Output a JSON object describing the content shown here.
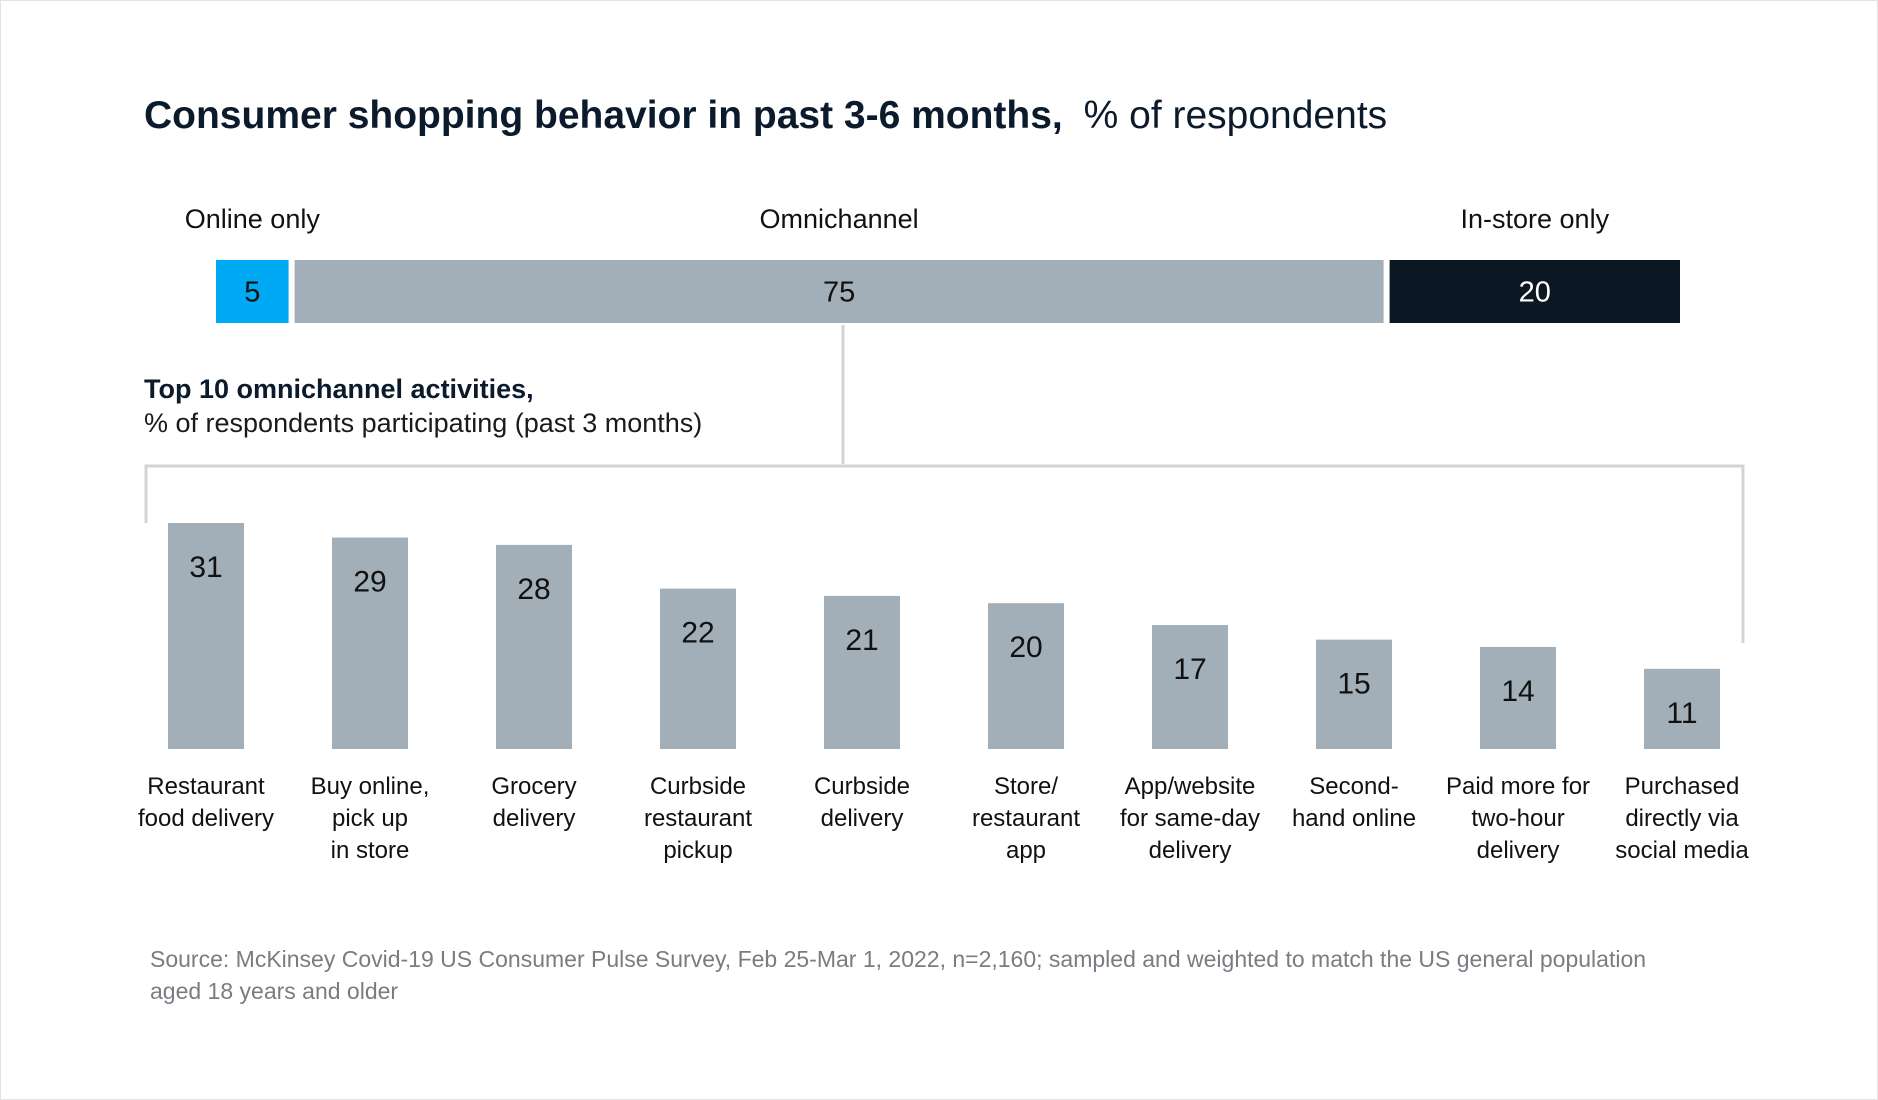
{
  "title": {
    "bold": "Consumer shopping behavior in past 3-6 months,",
    "regular": "% of respondents"
  },
  "colors": {
    "online": "#00a9f4",
    "omnichannel": "#a2afb9",
    "instore": "#0b1823",
    "bar": "#a2afb9",
    "bracket": "#d0d4d7",
    "text": "#111111",
    "source": "#777d82"
  },
  "subtitle": {
    "bold": "Top 10 omnichannel activities,",
    "regular": "% of respondents participating (past 3 months)"
  },
  "source": {
    "line1": "Source: McKinsey Covid-19 US Consumer Pulse Survey, Feb 25-Mar 1, 2022, n=2,160; sampled and weighted to match the US general population",
    "line2": "aged 18 years and older"
  },
  "chart_data": [
    {
      "type": "bar",
      "orientation": "horizontal-stacked",
      "title": "Consumer shopping behavior in past 3-6 months, % of respondents",
      "categories": [
        "Online only",
        "Omnichannel",
        "In-store only"
      ],
      "values": [
        5,
        75,
        20
      ],
      "labels": [
        "5",
        "75",
        "20"
      ]
    },
    {
      "type": "bar",
      "title": "Top 10 omnichannel activities, % of respondents participating (past 3 months)",
      "categories": [
        [
          "Restaurant",
          "food delivery"
        ],
        [
          "Buy online,",
          "pick up",
          "in store"
        ],
        [
          "Grocery",
          "delivery"
        ],
        [
          "Curbside",
          "restaurant",
          "pickup"
        ],
        [
          "Curbside",
          "delivery"
        ],
        [
          "Store/",
          "restaurant",
          "app"
        ],
        [
          "App/website",
          "for same-day",
          "delivery"
        ],
        [
          "Second-",
          "hand online"
        ],
        [
          "Paid more for",
          "two-hour",
          "delivery"
        ],
        [
          "Purchased",
          "directly via",
          "social media"
        ]
      ],
      "values": [
        31,
        29,
        28,
        22,
        21,
        20,
        17,
        15,
        14,
        11
      ],
      "labels": [
        "31",
        "29",
        "28",
        "22",
        "21",
        "20",
        "17",
        "15",
        "14",
        "11"
      ]
    }
  ]
}
